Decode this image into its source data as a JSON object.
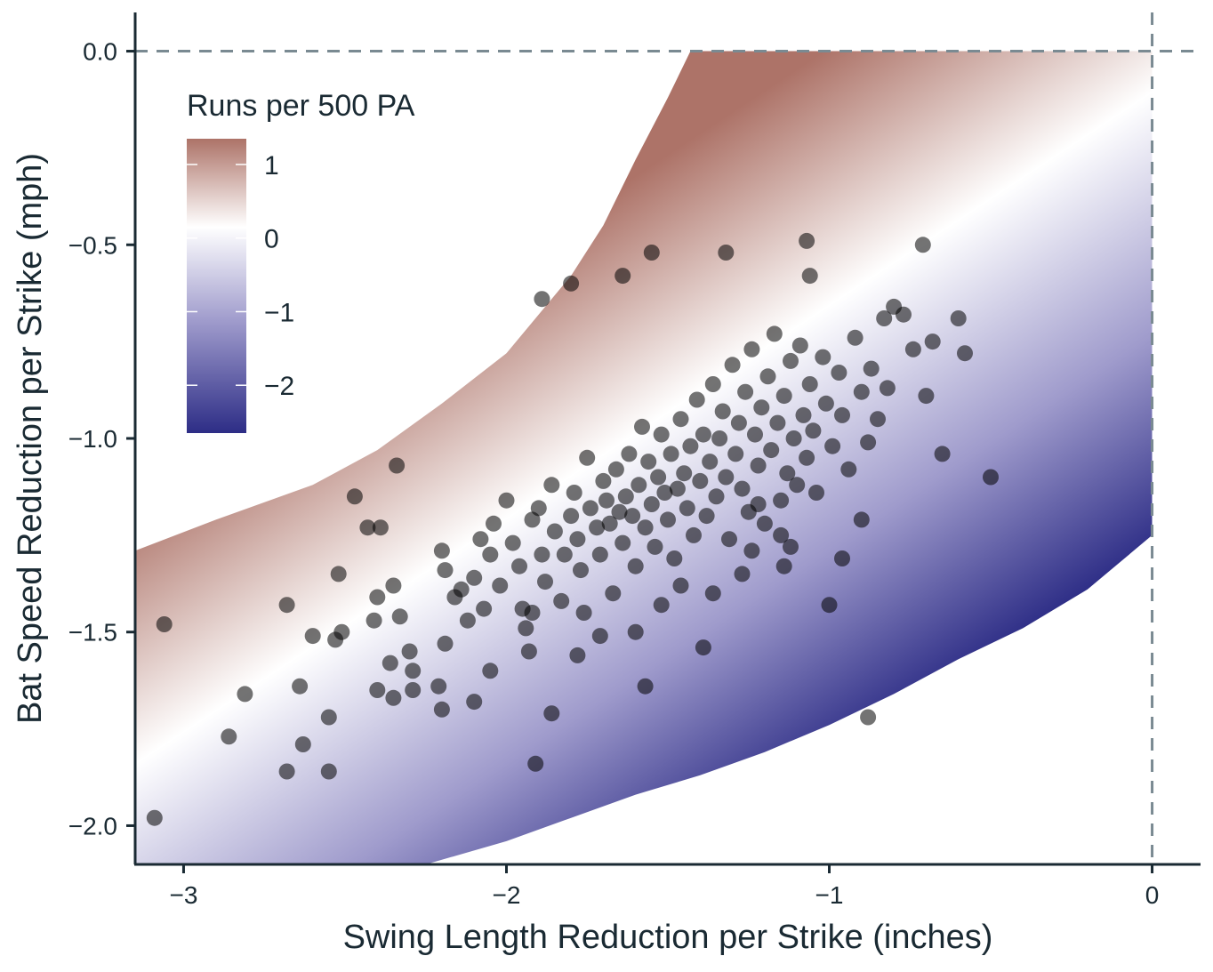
{
  "chart_data": {
    "type": "scatter",
    "title": "",
    "xlabel": "Swing Length Reduction per Strike (inches)",
    "ylabel": "Bat Speed Reduction per Strike (mph)",
    "xlim": [
      -3.15,
      0.15
    ],
    "ylim": [
      -2.1,
      0.1
    ],
    "x_ticks": [
      -3,
      -2,
      -1,
      0
    ],
    "x_tick_labels": [
      "−3",
      "−2",
      "−1",
      "0"
    ],
    "y_ticks": [
      0.0,
      -0.5,
      -1.0,
      -1.5,
      -2.0
    ],
    "y_tick_labels": [
      "0.0",
      "−0.5",
      "−1.0",
      "−1.5",
      "−2.0"
    ],
    "reference_lines": {
      "x": 0,
      "y": 0,
      "style": "dashed"
    },
    "grid": false,
    "legend": {
      "title": "Runs per 500 PA",
      "placement": "top-left",
      "ticks": [
        1,
        0,
        -1,
        -2
      ],
      "tick_labels": [
        "1",
        "0",
        "−1",
        "−2"
      ],
      "range": [
        -2.65,
        1.35
      ]
    },
    "colors": {
      "high": "#ad7368",
      "mid": "#ffffff",
      "low": "#2d2d86",
      "points": "#000000",
      "axis": "#1a2a33",
      "refline": "#7a8a92"
    },
    "surface": {
      "description_of_fill": "diverging gradient of runs per 500 PA over a curved band",
      "band_upper": [
        [
          -3.15,
          -1.29
        ],
        [
          -2.9,
          -1.21
        ],
        [
          -2.6,
          -1.12
        ],
        [
          -2.4,
          -1.03
        ],
        [
          -2.2,
          -0.91
        ],
        [
          -2.0,
          -0.78
        ],
        [
          -1.8,
          -0.58
        ],
        [
          -1.7,
          -0.45
        ],
        [
          -1.6,
          -0.28
        ],
        [
          -1.5,
          -0.12
        ],
        [
          -1.43,
          0.0
        ],
        [
          0.0,
          0.0
        ]
      ],
      "band_lower": [
        [
          -3.15,
          -2.1
        ],
        [
          -2.25,
          -2.1
        ],
        [
          -2.0,
          -2.04
        ],
        [
          -1.8,
          -1.98
        ],
        [
          -1.6,
          -1.92
        ],
        [
          -1.4,
          -1.87
        ],
        [
          -1.2,
          -1.81
        ],
        [
          -1.0,
          -1.74
        ],
        [
          -0.8,
          -1.66
        ],
        [
          -0.6,
          -1.57
        ],
        [
          -0.4,
          -1.49
        ],
        [
          -0.2,
          -1.39
        ],
        [
          0.0,
          -1.25
        ]
      ]
    },
    "series": [
      {
        "points": [
          [
            -3.09,
            -1.98
          ],
          [
            -3.06,
            -1.48
          ],
          [
            -2.86,
            -1.77
          ],
          [
            -2.81,
            -1.66
          ],
          [
            -2.68,
            -1.43
          ],
          [
            -2.68,
            -1.86
          ],
          [
            -2.64,
            -1.64
          ],
          [
            -2.63,
            -1.79
          ],
          [
            -2.6,
            -1.51
          ],
          [
            -2.52,
            -1.35
          ],
          [
            -2.55,
            -1.86
          ],
          [
            -2.55,
            -1.72
          ],
          [
            -2.53,
            -1.52
          ],
          [
            -2.51,
            -1.5
          ],
          [
            -2.47,
            -1.15
          ],
          [
            -2.43,
            -1.23
          ],
          [
            -2.39,
            -1.23
          ],
          [
            -2.41,
            -1.47
          ],
          [
            -2.4,
            -1.41
          ],
          [
            -2.4,
            -1.65
          ],
          [
            -2.35,
            -1.38
          ],
          [
            -2.36,
            -1.58
          ],
          [
            -2.35,
            -1.67
          ],
          [
            -2.33,
            -1.46
          ],
          [
            -2.3,
            -1.55
          ],
          [
            -2.29,
            -1.6
          ],
          [
            -2.29,
            -1.65
          ],
          [
            -2.34,
            -1.07
          ],
          [
            -2.2,
            -1.29
          ],
          [
            -2.19,
            -1.34
          ],
          [
            -2.19,
            -1.53
          ],
          [
            -2.21,
            -1.64
          ],
          [
            -2.2,
            -1.7
          ],
          [
            -2.1,
            -1.68
          ],
          [
            -2.16,
            -1.41
          ],
          [
            -2.14,
            -1.39
          ],
          [
            -2.12,
            -1.47
          ],
          [
            -2.1,
            -1.36
          ],
          [
            -2.08,
            -1.26
          ],
          [
            -2.07,
            -1.44
          ],
          [
            -2.05,
            -1.3
          ],
          [
            -2.04,
            -1.22
          ],
          [
            -2.02,
            -1.38
          ],
          [
            -2.0,
            -1.16
          ],
          [
            -1.98,
            -1.27
          ],
          [
            -1.96,
            -1.33
          ],
          [
            -1.95,
            -1.44
          ],
          [
            -1.94,
            -1.49
          ],
          [
            -1.93,
            -1.55
          ],
          [
            -1.92,
            -1.21
          ],
          [
            -1.9,
            -1.18
          ],
          [
            -1.89,
            -1.3
          ],
          [
            -1.88,
            -1.37
          ],
          [
            -1.86,
            -1.12
          ],
          [
            -1.85,
            -1.24
          ],
          [
            -1.83,
            -1.42
          ],
          [
            -1.82,
            -1.3
          ],
          [
            -1.8,
            -1.2
          ],
          [
            -1.79,
            -1.14
          ],
          [
            -1.78,
            -1.26
          ],
          [
            -1.77,
            -1.34
          ],
          [
            -1.76,
            -1.45
          ],
          [
            -1.75,
            -1.05
          ],
          [
            -1.74,
            -1.18
          ],
          [
            -1.72,
            -1.23
          ],
          [
            -1.71,
            -1.3
          ],
          [
            -1.7,
            -1.11
          ],
          [
            -1.69,
            -1.16
          ],
          [
            -1.68,
            -1.22
          ],
          [
            -1.67,
            -1.4
          ],
          [
            -1.66,
            -1.08
          ],
          [
            -1.65,
            -1.19
          ],
          [
            -1.64,
            -1.27
          ],
          [
            -1.63,
            -1.15
          ],
          [
            -1.62,
            -1.04
          ],
          [
            -1.61,
            -1.2
          ],
          [
            -1.6,
            -1.33
          ],
          [
            -1.59,
            -1.12
          ],
          [
            -1.58,
            -0.97
          ],
          [
            -1.57,
            -1.23
          ],
          [
            -1.56,
            -1.06
          ],
          [
            -1.55,
            -1.17
          ],
          [
            -1.54,
            -1.28
          ],
          [
            -1.53,
            -1.1
          ],
          [
            -1.52,
            -0.99
          ],
          [
            -1.51,
            -1.14
          ],
          [
            -1.5,
            -1.21
          ],
          [
            -1.49,
            -1.04
          ],
          [
            -1.48,
            -1.31
          ],
          [
            -1.47,
            -1.13
          ],
          [
            -1.46,
            -0.95
          ],
          [
            -1.45,
            -1.09
          ],
          [
            -1.44,
            -1.18
          ],
          [
            -1.43,
            -1.02
          ],
          [
            -1.42,
            -1.25
          ],
          [
            -1.41,
            -0.9
          ],
          [
            -1.4,
            -1.11
          ],
          [
            -1.39,
            -0.99
          ],
          [
            -1.38,
            -1.2
          ],
          [
            -1.37,
            -1.06
          ],
          [
            -1.36,
            -0.86
          ],
          [
            -1.35,
            -1.15
          ],
          [
            -1.34,
            -1.0
          ],
          [
            -1.33,
            -0.93
          ],
          [
            -1.32,
            -1.1
          ],
          [
            -1.31,
            -1.26
          ],
          [
            -1.3,
            -0.81
          ],
          [
            -1.29,
            -1.04
          ],
          [
            -1.28,
            -0.96
          ],
          [
            -1.27,
            -1.13
          ],
          [
            -1.26,
            -0.88
          ],
          [
            -1.25,
            -1.19
          ],
          [
            -1.24,
            -0.77
          ],
          [
            -1.23,
            -0.99
          ],
          [
            -1.22,
            -1.07
          ],
          [
            -1.21,
            -0.92
          ],
          [
            -1.2,
            -1.22
          ],
          [
            -1.19,
            -0.84
          ],
          [
            -1.18,
            -1.03
          ],
          [
            -1.17,
            -0.73
          ],
          [
            -1.16,
            -0.96
          ],
          [
            -1.15,
            -1.16
          ],
          [
            -1.14,
            -0.89
          ],
          [
            -1.13,
            -1.09
          ],
          [
            -1.12,
            -0.8
          ],
          [
            -1.11,
            -1.0
          ],
          [
            -1.1,
            -1.12
          ],
          [
            -1.09,
            -0.76
          ],
          [
            -1.08,
            -0.94
          ],
          [
            -1.07,
            -1.05
          ],
          [
            -1.06,
            -0.86
          ],
          [
            -1.05,
            -0.98
          ],
          [
            -1.04,
            -1.14
          ],
          [
            -1.02,
            -0.79
          ],
          [
            -1.01,
            -0.91
          ],
          [
            -0.99,
            -1.02
          ],
          [
            -0.97,
            -0.83
          ],
          [
            -0.96,
            -0.94
          ],
          [
            -0.94,
            -1.08
          ],
          [
            -0.92,
            -0.74
          ],
          [
            -0.9,
            -0.88
          ],
          [
            -0.88,
            -1.01
          ],
          [
            -0.87,
            -0.82
          ],
          [
            -0.85,
            -0.95
          ],
          [
            -0.83,
            -0.69
          ],
          [
            -0.82,
            -0.87
          ],
          [
            -0.8,
            -0.66
          ],
          [
            -0.77,
            -0.68
          ],
          [
            -0.74,
            -0.77
          ],
          [
            -0.7,
            -0.89
          ],
          [
            -0.68,
            -0.75
          ],
          [
            -0.65,
            -1.04
          ],
          [
            -0.6,
            -0.69
          ],
          [
            -0.58,
            -0.78
          ],
          [
            -0.5,
            -1.1
          ],
          [
            -0.71,
            -0.5
          ],
          [
            -1.07,
            -0.49
          ],
          [
            -1.06,
            -0.58
          ],
          [
            -1.32,
            -0.52
          ],
          [
            -1.55,
            -0.52
          ],
          [
            -1.64,
            -0.58
          ],
          [
            -1.8,
            -0.6
          ],
          [
            -1.89,
            -0.64
          ],
          [
            -0.9,
            -1.21
          ],
          [
            -0.88,
            -1.72
          ],
          [
            -0.96,
            -1.31
          ],
          [
            -1.0,
            -1.43
          ],
          [
            -1.14,
            -1.33
          ],
          [
            -1.12,
            -1.28
          ],
          [
            -1.15,
            -1.25
          ],
          [
            -1.39,
            -1.54
          ],
          [
            -1.36,
            -1.4
          ],
          [
            -1.57,
            -1.64
          ],
          [
            -1.6,
            -1.5
          ],
          [
            -1.78,
            -1.56
          ],
          [
            -1.86,
            -1.71
          ],
          [
            -1.91,
            -1.84
          ],
          [
            -2.05,
            -1.6
          ],
          [
            -1.92,
            -1.45
          ],
          [
            -1.71,
            -1.51
          ],
          [
            -1.52,
            -1.43
          ],
          [
            -1.46,
            -1.38
          ],
          [
            -1.27,
            -1.35
          ],
          [
            -1.22,
            -1.17
          ],
          [
            -1.24,
            -1.29
          ]
        ]
      }
    ]
  }
}
